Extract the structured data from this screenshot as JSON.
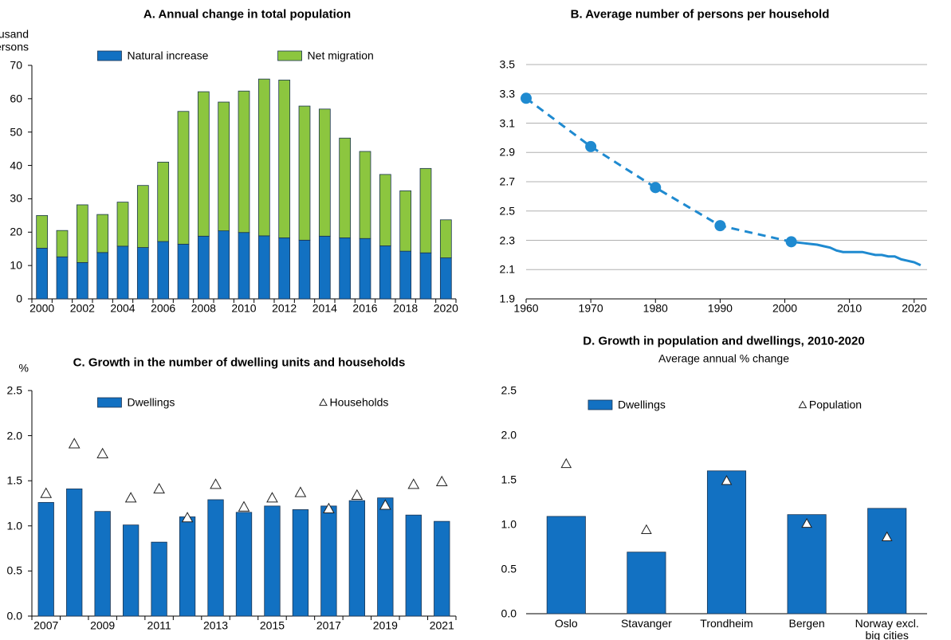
{
  "chart_data": [
    {
      "type": "bar",
      "stacked": true,
      "title": "A. Annual change in total population",
      "ylabel": [
        "Thousand",
        "persons"
      ],
      "legend": "top",
      "categories": [
        "2000",
        null,
        "2002",
        null,
        "2004",
        null,
        "2006",
        null,
        "2008",
        null,
        "2010",
        null,
        "2012",
        null,
        "2014",
        null,
        "2016",
        null,
        "2018",
        null,
        "2020"
      ],
      "series": [
        {
          "name": "Natural increase",
          "color": "#1271c2",
          "values": [
            15.2,
            12.6,
            10.9,
            13.9,
            15.8,
            15.4,
            17.2,
            16.4,
            18.8,
            20.4,
            19.9,
            18.9,
            18.3,
            17.6,
            18.8,
            18.3,
            18.1,
            15.9,
            14.3,
            13.8,
            12.3
          ]
        },
        {
          "name": "Net migration",
          "color": "#8cc63f",
          "values": [
            9.8,
            7.9,
            17.3,
            11.4,
            13.2,
            18.6,
            23.8,
            39.8,
            43.3,
            38.6,
            42.4,
            47.0,
            47.3,
            40.2,
            38.1,
            29.9,
            26.1,
            21.4,
            18.1,
            25.3,
            11.4
          ]
        }
      ],
      "ylim": [
        0,
        70
      ],
      "yticks": [
        0,
        10,
        20,
        30,
        40,
        50,
        60,
        70
      ],
      "grid": false
    },
    {
      "type": "line",
      "title": "B. Average number of persons per household",
      "series": [
        {
          "color": "#1f8ad0",
          "dash": true,
          "markers": true,
          "x": [
            1960,
            1970,
            1980,
            1990,
            2001
          ],
          "values": [
            3.27,
            2.94,
            2.66,
            2.4,
            2.29
          ]
        },
        {
          "color": "#1f8ad0",
          "dash": false,
          "markers": false,
          "x": [
            2001,
            2002,
            2003,
            2004,
            2005,
            2006,
            2007,
            2008,
            2009,
            2010,
            2011,
            2012,
            2013,
            2014,
            2015,
            2016,
            2017,
            2018,
            2019,
            2020,
            2021
          ],
          "values": [
            2.29,
            2.285,
            2.28,
            2.275,
            2.27,
            2.26,
            2.25,
            2.23,
            2.22,
            2.22,
            2.22,
            2.22,
            2.21,
            2.2,
            2.2,
            2.19,
            2.19,
            2.17,
            2.16,
            2.15,
            2.13
          ]
        }
      ],
      "xlim": [
        1960,
        2022
      ],
      "xticks": [
        1960,
        1970,
        1980,
        1990,
        2000,
        2010,
        2020
      ],
      "ylim": [
        1.9,
        3.5
      ],
      "yticks": [
        1.9,
        2.1,
        2.3,
        2.5,
        2.7,
        2.9,
        3.1,
        3.3,
        3.5
      ],
      "grid": true
    },
    {
      "type": "bar",
      "stacked": false,
      "title": "C. Growth in the number of dwelling units and households",
      "ylabel": [
        "%"
      ],
      "legend": "inside-top",
      "categories": [
        "2007",
        null,
        "2009",
        null,
        "2011",
        null,
        "2013",
        null,
        "2015",
        null,
        "2017",
        null,
        "2019",
        null,
        "2021"
      ],
      "series": [
        {
          "name": "Dwellings",
          "color": "#1271c2",
          "values": [
            1.26,
            1.41,
            1.16,
            1.01,
            0.82,
            1.1,
            1.29,
            1.15,
            1.22,
            1.18,
            1.22,
            1.28,
            1.31,
            1.12,
            1.05
          ]
        },
        {
          "name": "Households",
          "color": "#ffffff",
          "marker": "triangle",
          "values": [
            1.36,
            1.91,
            1.8,
            1.31,
            1.41,
            1.09,
            1.46,
            1.21,
            1.31,
            1.37,
            1.19,
            1.34,
            1.23,
            1.46,
            1.49
          ]
        }
      ],
      "ylim": [
        0,
        2.5
      ],
      "yticks": [
        {
          "value": 0,
          "label": "0.0"
        },
        0.5,
        {
          "value": 1,
          "label": "1.0"
        },
        1.5,
        {
          "value": 2,
          "label": "2.0"
        },
        2.5
      ],
      "grid": false
    },
    {
      "type": "bar",
      "stacked": false,
      "title": "D. Growth in population and dwellings, 2010-2020",
      "subtitle": "Average annual % change",
      "legend": "inside-top",
      "categories": [
        "Oslo",
        "Stavanger",
        "Trondheim",
        "Bergen",
        "Norway excl. big cities"
      ],
      "series": [
        {
          "name": "Dwellings",
          "color": "#1271c2",
          "values": [
            1.09,
            0.69,
            1.6,
            1.11,
            1.18
          ]
        },
        {
          "name": "Population",
          "color": "#ffffff",
          "marker": "triangle",
          "values": [
            1.68,
            0.94,
            1.49,
            1.01,
            0.86
          ]
        }
      ],
      "ylim": [
        0,
        2.5
      ],
      "yticks": [
        {
          "value": 0,
          "label": "0.0"
        },
        0.5,
        {
          "value": 1,
          "label": "1.0"
        },
        1.5,
        {
          "value": 2,
          "label": "2.0"
        },
        2.5
      ],
      "grid": false
    }
  ]
}
